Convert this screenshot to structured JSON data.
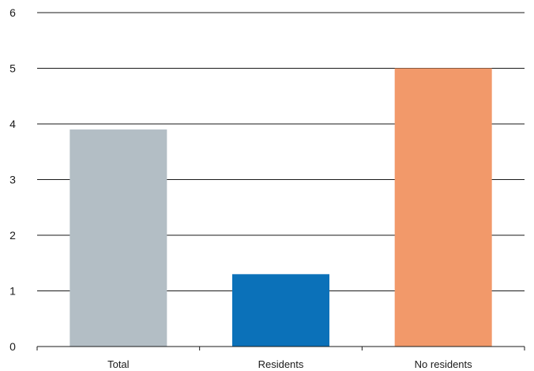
{
  "chart_data": {
    "type": "bar",
    "title": "",
    "xlabel": "",
    "ylabel": "",
    "categories": [
      "Total",
      "Residents",
      "No residents"
    ],
    "values": [
      3.9,
      1.3,
      5.0
    ],
    "bar_colors": [
      "#b3bec5",
      "#0b71b9",
      "#f2996a"
    ],
    "ylim": [
      0,
      6
    ],
    "y_ticks": [
      "0",
      "1",
      "2",
      "3",
      "4",
      "5",
      "6"
    ],
    "grid": true,
    "legend": "none"
  }
}
